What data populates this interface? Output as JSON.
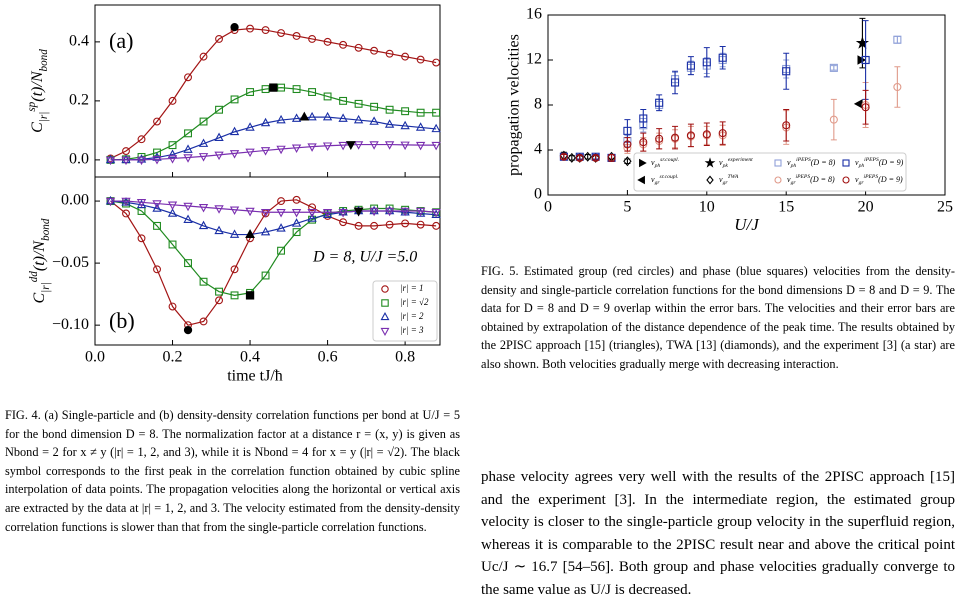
{
  "figure4": {
    "type": "line",
    "x": [
      0.04,
      0.08,
      0.12,
      0.16,
      0.2,
      0.24,
      0.28,
      0.32,
      0.36,
      0.4,
      0.44,
      0.48,
      0.52,
      0.56,
      0.6,
      0.64,
      0.68,
      0.72,
      0.76,
      0.8,
      0.84,
      0.88
    ],
    "xlim": [
      0,
      0.89
    ],
    "xticks": [
      {
        "value": 0,
        "label": "0.0"
      },
      {
        "value": 0.2,
        "label": "0.2"
      },
      {
        "value": 0.4,
        "label": "0.4"
      },
      {
        "value": 0.6,
        "label": "0.6"
      },
      {
        "value": 0.8,
        "label": "0.8"
      }
    ],
    "xlabel": "time tJ/ħ",
    "annotation": "D = 8, U/J =5.0",
    "legend": [
      {
        "label": "|r| = 1",
        "color": "#a31515",
        "marker": "circle"
      },
      {
        "label": "|r| = √2",
        "color": "#1f8a1f",
        "marker": "square"
      },
      {
        "label": "|r| = 2",
        "color": "#1a2fa6",
        "marker": "tri-up"
      },
      {
        "label": "|r| = 3",
        "color": "#7a2fb0",
        "marker": "tri-down"
      }
    ],
    "panels": [
      {
        "tag": "(a)",
        "ylabel": [
          "C",
          {
            "sub": "|r|"
          },
          {
            "sup": "sp"
          },
          "(t)/N",
          {
            "sub": "bond"
          }
        ],
        "ylim": [
          -0.058,
          0.525
        ],
        "yticks": [
          {
            "value": 0,
            "label": "0.0"
          },
          {
            "value": 0.2,
            "label": "0.2"
          },
          {
            "value": 0.4,
            "label": "0.4"
          }
        ],
        "series": [
          {
            "values": [
              0.005,
              0.03,
              0.07,
              0.13,
              0.2,
              0.28,
              0.35,
              0.41,
              0.44,
              0.445,
              0.44,
              0.43,
              0.42,
              0.41,
              0.4,
              0.39,
              0.38,
              0.37,
              0.36,
              0.35,
              0.34,
              0.33
            ]
          },
          {
            "values": [
              0,
              0.002,
              0.01,
              0.025,
              0.05,
              0.09,
              0.13,
              0.17,
              0.205,
              0.23,
              0.24,
              0.245,
              0.24,
              0.23,
              0.215,
              0.2,
              0.19,
              0.18,
              0.17,
              0.165,
              0.16,
              0.16
            ]
          },
          {
            "values": [
              0,
              0,
              0.002,
              0.008,
              0.018,
              0.035,
              0.055,
              0.075,
              0.095,
              0.11,
              0.125,
              0.135,
              0.14,
              0.145,
              0.145,
              0.14,
              0.135,
              0.13,
              0.12,
              0.115,
              0.11,
              0.105
            ]
          },
          {
            "values": [
              0,
              0,
              0,
              0.002,
              0.005,
              0.008,
              0.012,
              0.017,
              0.022,
              0.027,
              0.032,
              0.037,
              0.041,
              0.045,
              0.048,
              0.05,
              0.052,
              0.052,
              0.052,
              0.051,
              0.05,
              0.05
            ]
          }
        ],
        "peaks": [
          {
            "x": 0.36,
            "y": 0.45
          },
          {
            "x": 0.46,
            "y": 0.245
          },
          {
            "x": 0.54,
            "y": 0.145
          },
          {
            "x": 0.66,
            "y": 0.052
          }
        ]
      },
      {
        "tag": "(b)",
        "ylabel": [
          "C",
          {
            "sub": "|r|"
          },
          {
            "sup": "dd"
          },
          "(t)/N",
          {
            "sub": "bond"
          }
        ],
        "ylim": [
          -0.116,
          0.0194
        ],
        "yticks": [
          {
            "value": 0,
            "label": "0.00"
          },
          {
            "value": -0.05,
            "label": "−0.05"
          },
          {
            "value": -0.1,
            "label": "−0.10"
          }
        ],
        "series": [
          {
            "values": [
              0,
              -0.01,
              -0.03,
              -0.055,
              -0.085,
              -0.1,
              -0.097,
              -0.08,
              -0.055,
              -0.03,
              -0.01,
              0,
              0.001,
              -0.005,
              -0.012,
              -0.017,
              -0.02,
              -0.02,
              -0.019,
              -0.018,
              -0.019,
              -0.02
            ]
          },
          {
            "values": [
              0,
              -0.002,
              -0.008,
              -0.02,
              -0.035,
              -0.05,
              -0.065,
              -0.073,
              -0.076,
              -0.074,
              -0.06,
              -0.04,
              -0.025,
              -0.015,
              -0.01,
              -0.008,
              -0.007,
              -0.006,
              -0.006,
              -0.007,
              -0.008,
              -0.009
            ]
          },
          {
            "values": [
              0,
              -0.001,
              -0.003,
              -0.006,
              -0.01,
              -0.015,
              -0.02,
              -0.024,
              -0.027,
              -0.027,
              -0.025,
              -0.022,
              -0.018,
              -0.014,
              -0.011,
              -0.009,
              -0.008,
              -0.008,
              -0.008,
              -0.009,
              -0.01,
              -0.011
            ]
          },
          {
            "values": [
              0,
              0,
              -0.001,
              -0.002,
              -0.003,
              -0.004,
              -0.005,
              -0.006,
              -0.007,
              -0.008,
              -0.009,
              -0.009,
              -0.009,
              -0.009,
              -0.009,
              -0.009,
              -0.008,
              -0.008,
              -0.008,
              -0.008,
              -0.008,
              -0.009
            ]
          }
        ],
        "peaks": [
          {
            "x": 0.24,
            "y": -0.104
          },
          {
            "x": 0.4,
            "y": -0.076
          },
          {
            "x": 0.4,
            "y": -0.027
          },
          {
            "x": 0.68,
            "y": -0.008
          }
        ]
      }
    ],
    "caption": "FIG. 4. (a) Single-particle and (b) density-density correlation functions per bond at U/J = 5 for the bond dimension D = 8. The normalization factor at a distance r = (x, y) is given as Nbond = 2 for x ≠ y (|r| = 1, 2, and 3), while it is Nbond = 4 for x = y (|r| = √2). The black symbol corresponds to the first peak in the correlation function obtained by cubic spline interpolation of data points. The propagation velocities along the horizontal or vertical axis are extracted by the data at |r| = 1, 2, and 3. The velocity estimated from the density-density correlation functions is slower than that from the single-particle correlation functions."
  },
  "figure5": {
    "type": "scatter",
    "xlim": [
      0,
      25
    ],
    "xticks": [
      0,
      5,
      10,
      15,
      20,
      25
    ],
    "ylim": [
      0,
      16
    ],
    "yticks": [
      0,
      4,
      8,
      12,
      16
    ],
    "xlabel": "U/J",
    "ylabel": "propagation velocities",
    "series": [
      {
        "name": [
          "v",
          {
            "sub": "ph"
          },
          {
            "sup": "sr.coupl."
          }
        ],
        "color": "#000000",
        "marker": "tri-right",
        "x": [
          19.7
        ],
        "values": [
          12.0
        ]
      },
      {
        "name": [
          "v",
          {
            "sub": "gr"
          },
          {
            "sup": "sr.coupl."
          }
        ],
        "color": "#000000",
        "marker": "tri-left",
        "x": [
          19.6
        ],
        "values": [
          8.1
        ]
      },
      {
        "name": [
          "v",
          {
            "sub": "pk"
          },
          {
            "sup": "experiment"
          }
        ],
        "color": "#000000",
        "marker": "star",
        "x": [
          19.8
        ],
        "values": [
          13.5
        ],
        "errors": [
          2.2
        ]
      },
      {
        "name": [
          "v",
          {
            "sub": "gr"
          },
          {
            "sup": "TWA"
          }
        ],
        "color": "#000000",
        "marker": "diamond",
        "x": [
          1,
          1.5,
          2,
          2.5,
          3,
          4,
          5
        ],
        "values": [
          3.5,
          3.3,
          3.3,
          3.4,
          3.3,
          3.4,
          3.0
        ],
        "errors": [
          0.3,
          0.2,
          0.2,
          0.2,
          0.2,
          0.2,
          0.2
        ]
      },
      {
        "name": [
          "v",
          {
            "sub": "ph"
          },
          {
            "sup": "iPEPS"
          },
          "(D = 8)"
        ],
        "color": "#8fa0d8",
        "marker": "square",
        "x": [
          5,
          6,
          7,
          8,
          9,
          10,
          11,
          15,
          18,
          20,
          22
        ],
        "values": [
          4.8,
          6.2,
          8,
          10.3,
          11.3,
          11.5,
          12,
          11.2,
          11.3,
          12,
          13.8
        ],
        "errors": [
          0.5,
          0.6,
          0.5,
          0.6,
          0.6,
          0.7,
          0.6,
          0.8,
          0.2,
          0.3,
          0.3
        ]
      },
      {
        "name": [
          "v",
          {
            "sub": "gr"
          },
          {
            "sup": "iPEPS"
          },
          "(D = 8)"
        ],
        "color": "#e09a8a",
        "marker": "circle",
        "x": [
          5,
          6,
          7,
          8,
          9,
          10,
          11,
          15,
          18,
          20,
          22
        ],
        "values": [
          4.2,
          4.5,
          4.8,
          5,
          5.2,
          5.3,
          5.3,
          6,
          6.7,
          8,
          9.6
        ],
        "errors": [
          0.5,
          0.6,
          0.7,
          0.8,
          0.9,
          0.8,
          0.9,
          1.5,
          1.8,
          2,
          1.8
        ]
      },
      {
        "name": [
          "v",
          {
            "sub": "ph"
          },
          {
            "sup": "iPEPS"
          },
          "(D = 9)"
        ],
        "color": "#1a2fa6",
        "marker": "square",
        "x": [
          1,
          2,
          3,
          4,
          5,
          6,
          7,
          8,
          9,
          10,
          11,
          15,
          20
        ],
        "values": [
          3.4,
          3.4,
          3.4,
          3.3,
          5.7,
          6.8,
          8.2,
          10,
          11.5,
          11.8,
          12.2,
          11,
          12
        ],
        "errors": [
          0.2,
          0.2,
          0.2,
          0.3,
          1,
          0.8,
          0.7,
          1,
          0.8,
          1.3,
          1,
          1.6,
          3.5
        ]
      },
      {
        "name": [
          "v",
          {
            "sub": "gr"
          },
          {
            "sup": "iPEPS"
          },
          "(D = 9)"
        ],
        "color": "#a01010",
        "marker": "circle",
        "x": [
          1,
          2,
          3,
          4,
          5,
          6,
          7,
          8,
          9,
          10,
          11,
          15,
          20
        ],
        "values": [
          3.4,
          3.3,
          3.3,
          3.3,
          4.5,
          4.7,
          5,
          5.1,
          5.3,
          5.4,
          5.5,
          6.2,
          7.8
        ],
        "errors": [
          0.2,
          0.2,
          0.2,
          0.3,
          0.6,
          0.8,
          0.9,
          1,
          1,
          1,
          1,
          1.4,
          1.5
        ]
      }
    ],
    "caption": "FIG. 5. Estimated group (red circles) and phase (blue squares) velocities from the density-density and single-particle correlation functions for the bond dimensions D = 8 and D = 9. The data for D = 8 and D = 9 overlap within the error bars. The velocities and their error bars are obtained by extrapolation of the distance dependence of the peak time. The results obtained by the 2PISC approach [15] (triangles), TWA [13] (diamonds), and the experiment [3] (a star) are also shown. Both velocities gradually merge with decreasing interaction."
  },
  "body": "phase velocity agrees very well with the results of the 2PISC approach [15] and the experiment [3]. In the intermediate region, the estimated group velocity is closer to the single-particle group velocity in the superfluid region, whereas it is comparable to the 2PISC result near and above the critical point Uc/J ∼ 16.7 [54–56]. Both group and phase velocities gradually converge to the same value as U/J is decreased."
}
